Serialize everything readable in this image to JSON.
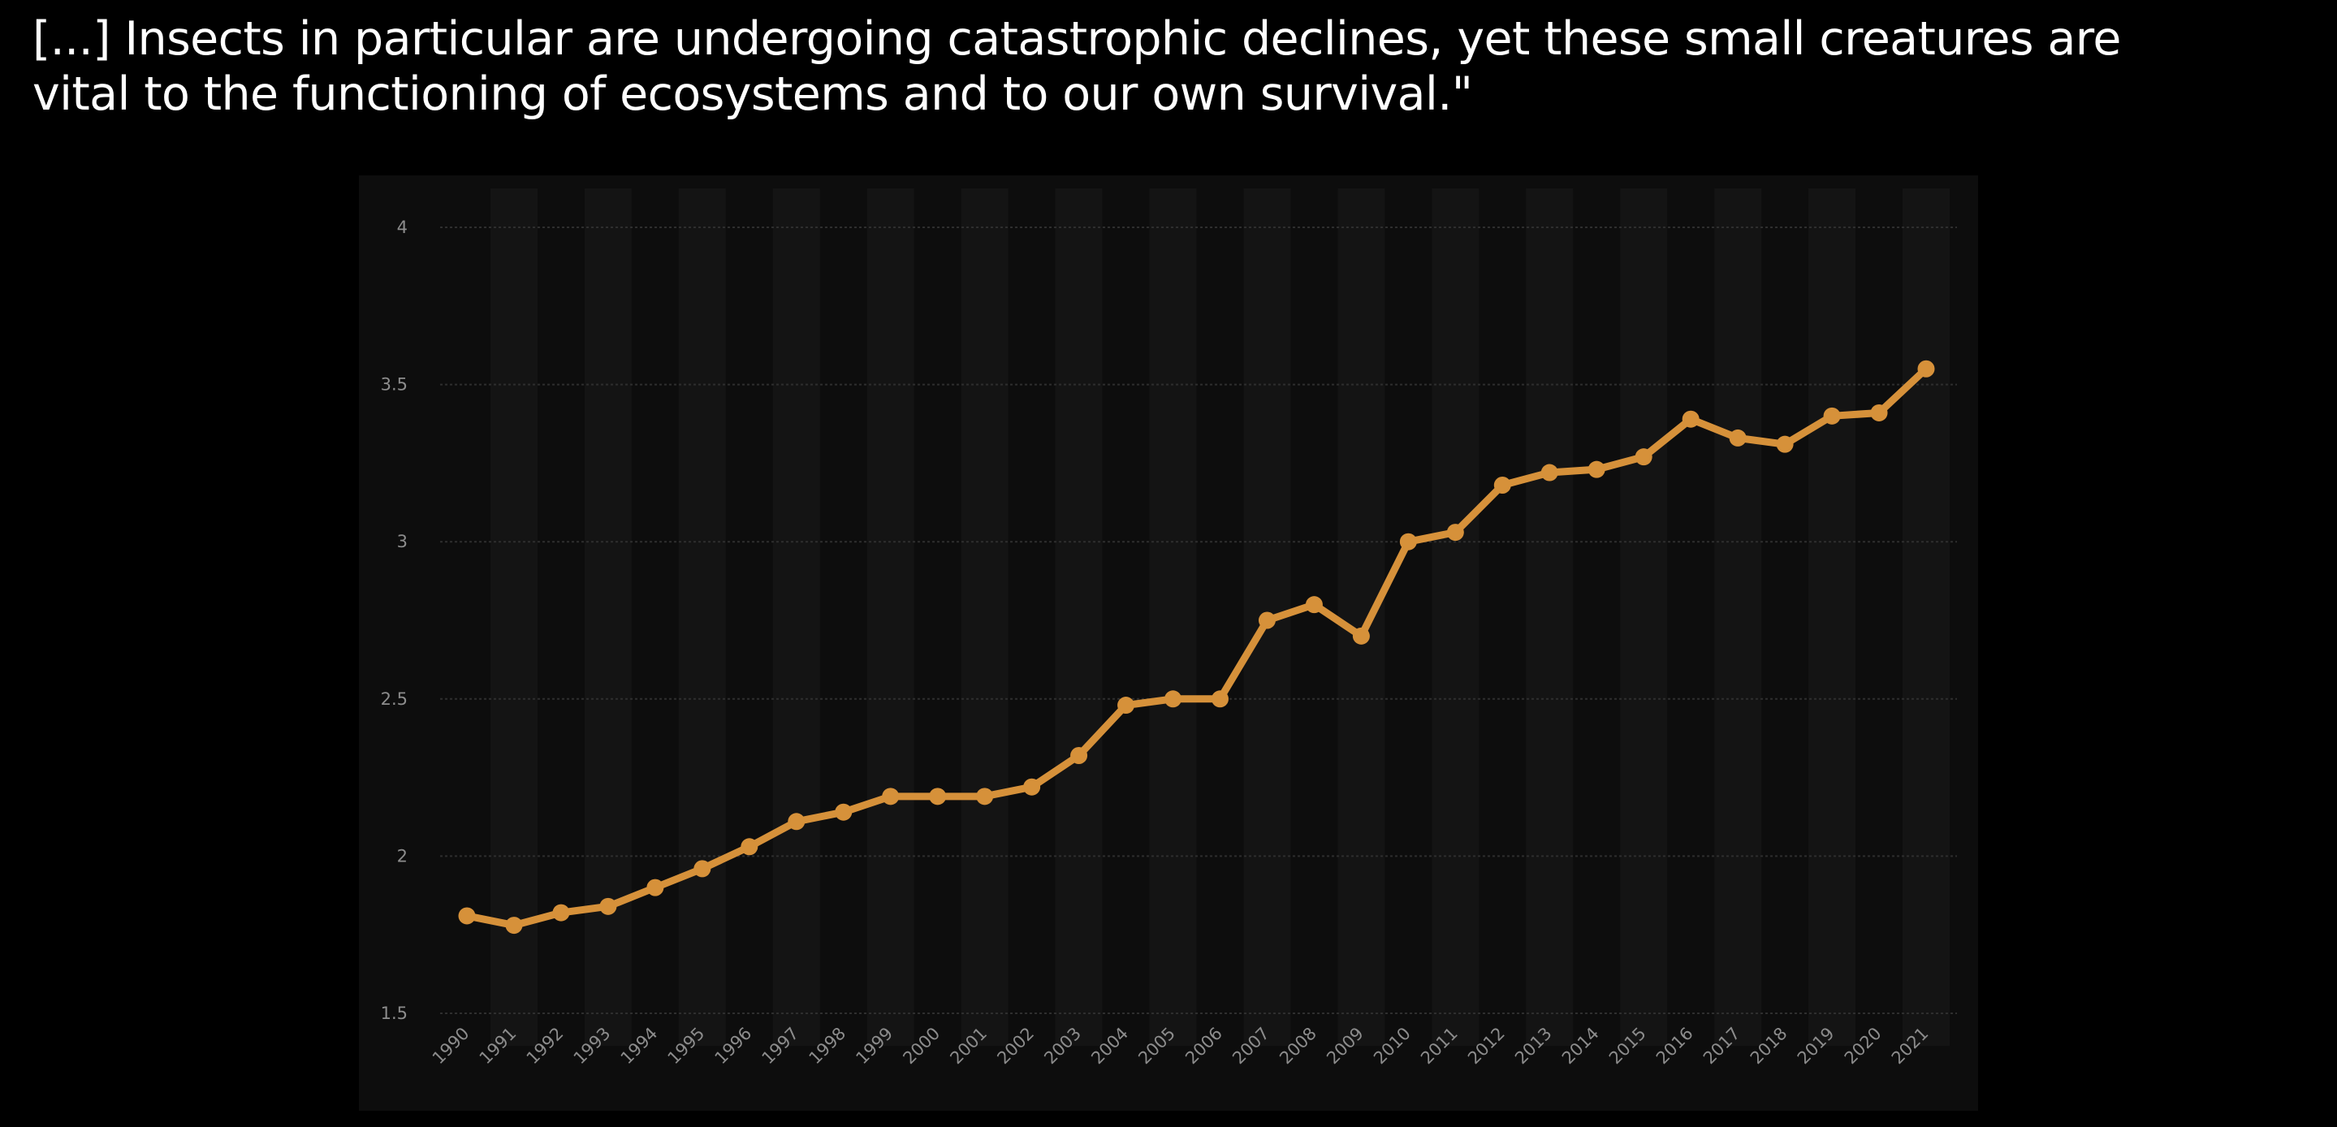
{
  "quote": {
    "line1": "[...] Insects in particular are undergoing catastrophic declines, yet these small creatures are",
    "line2": "vital to the functioning of ecosystems and to our own survival.\""
  },
  "colors": {
    "background": "#000000",
    "panel": "#0d0d0d",
    "band": "#141414",
    "grid": "#2e2e2e",
    "line": "#d6913a",
    "tick_text": "#8c8c8c"
  },
  "chart_data": {
    "type": "line",
    "title": "",
    "xlabel": "",
    "ylabel": "",
    "ylim": [
      1.5,
      4
    ],
    "y_ticks": [
      "4",
      "3.5",
      "3",
      "2.5",
      "2",
      "1.5"
    ],
    "grid": true,
    "legend": "none",
    "categories": [
      "1990",
      "1991",
      "1992",
      "1993",
      "1994",
      "1995",
      "1996",
      "1997",
      "1998",
      "1999",
      "2000",
      "2001",
      "2002",
      "2003",
      "2004",
      "2005",
      "2006",
      "2007",
      "2008",
      "2009",
      "2010",
      "2011",
      "2012",
      "2013",
      "2014",
      "2015",
      "2016",
      "2017",
      "2018",
      "2019",
      "2020",
      "2021"
    ],
    "series": [
      {
        "values": [
          1.81,
          1.78,
          1.82,
          1.84,
          1.9,
          1.96,
          2.03,
          2.11,
          2.14,
          2.19,
          2.19,
          2.19,
          2.22,
          2.32,
          2.48,
          2.5,
          2.5,
          2.75,
          2.8,
          2.7,
          3.0,
          3.03,
          3.18,
          3.22,
          3.23,
          3.27,
          3.39,
          3.33,
          3.31,
          3.4,
          3.41,
          3.55
        ]
      }
    ]
  }
}
